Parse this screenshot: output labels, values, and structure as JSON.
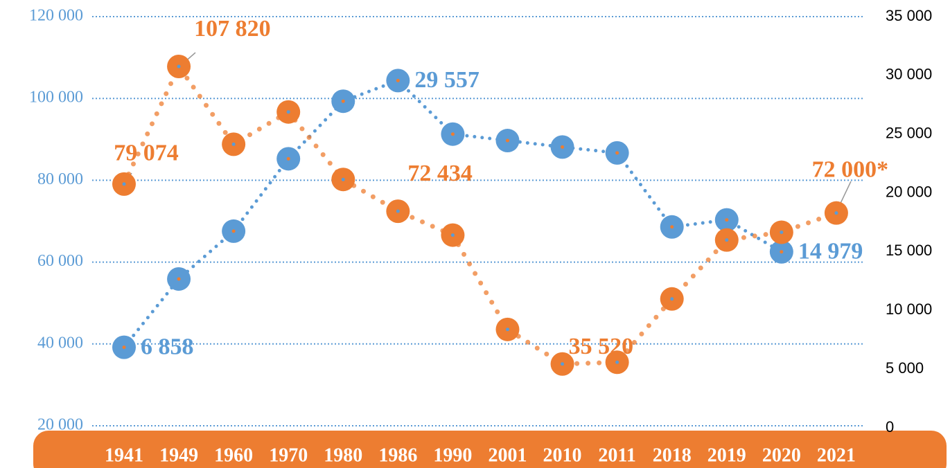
{
  "chart_data": {
    "type": "line",
    "categories": [
      "1941",
      "1949",
      "1960",
      "1970",
      "1980",
      "1986",
      "1990",
      "2001",
      "2010",
      "2011",
      "2018",
      "2019",
      "2020",
      "2021"
    ],
    "ylim": [
      20000,
      120000
    ],
    "yticks": [
      {
        "value": 20000,
        "label": "20 000"
      },
      {
        "value": 40000,
        "label": "40 000"
      },
      {
        "value": 60000,
        "label": "60 000"
      },
      {
        "value": 80000,
        "label": "80 000"
      },
      {
        "value": 100000,
        "label": "100 000"
      },
      {
        "value": 120000,
        "label": "120 000"
      }
    ],
    "y2lim": [
      0,
      35000
    ],
    "y2ticks": [
      0,
      {
        "value": 5000,
        "label": "5 000"
      },
      {
        "value": 10000,
        "label": "10 000"
      },
      {
        "value": 15000,
        "label": "15 000"
      },
      {
        "value": 20000,
        "label": "20 000"
      },
      {
        "value": 25000,
        "label": "25 000"
      },
      {
        "value": 30000,
        "label": "30 000"
      },
      {
        "value": 35000,
        "label": "35 000"
      }
    ],
    "grid": true,
    "series": [
      {
        "color": "#5b9bd5",
        "axis": "y2",
        "values": [
          6858,
          12670,
          16740,
          22900,
          27800,
          29557,
          25000,
          24450,
          23900,
          23400,
          17100,
          17700,
          14979,
          null
        ],
        "value_labels": [
          "6 858",
          null,
          null,
          null,
          null,
          "29 557",
          null,
          null,
          null,
          null,
          null,
          null,
          "14 979",
          null
        ]
      },
      {
        "color": "#ed7d31",
        "values": [
          79074,
          107820,
          88800,
          96700,
          80200,
          72434,
          66600,
          43550,
          35100,
          35520,
          51000,
          65400,
          67300,
          72000
        ],
        "value_labels": [
          "79 074",
          "107 820",
          null,
          null,
          null,
          "72 434",
          null,
          null,
          null,
          "35 520",
          null,
          null,
          null,
          "72 000*"
        ]
      }
    ]
  }
}
